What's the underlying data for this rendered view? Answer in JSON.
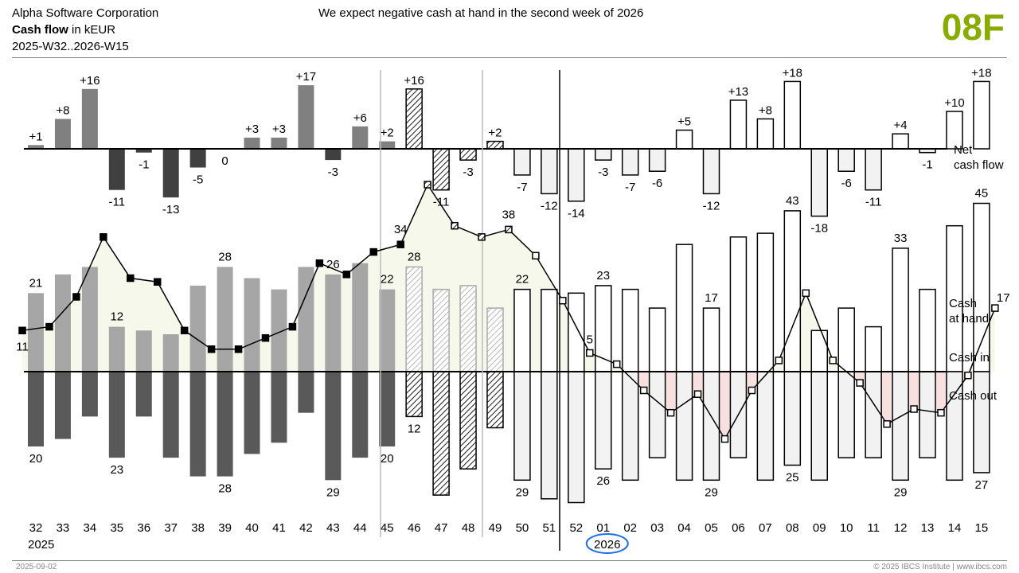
{
  "header": {
    "company": "Alpha Software Corporation",
    "title_bold": "Cash flow",
    "title_rest": " in kEUR",
    "period": "2025-W32..2026-W15",
    "message": "We expect negative cash at hand in the second week of 2026",
    "page_id": "08F"
  },
  "footer": {
    "date": "2025-09-02",
    "copyright": "© 2025 IBCS Institute | www.ibcs.com"
  },
  "colors": {
    "page_id": "#8aab00",
    "actual_net_pos": "#808080",
    "actual_net_neg": "#404040",
    "actual_in": "#a6a6a6",
    "actual_out": "#595959",
    "plan_fill": "#f2f2f2",
    "positive_area": "#f7f8ec",
    "negative_area": "#f8e0e0",
    "year_highlight": "#1a6fe8"
  },
  "chart_data": {
    "type": "bar",
    "title": "Cash flow",
    "unit": "kEUR",
    "series_labels": {
      "net": "Net\ncash flow",
      "cash_at_hand": "Cash\nat hand",
      "cash_in": "Cash in",
      "cash_out": "Cash out"
    },
    "weeks": [
      "32",
      "33",
      "34",
      "35",
      "36",
      "37",
      "38",
      "39",
      "40",
      "41",
      "42",
      "43",
      "44",
      "45",
      "46",
      "47",
      "48",
      "49",
      "50",
      "51",
      "52",
      "01",
      "02",
      "03",
      "04",
      "05",
      "06",
      "07",
      "08",
      "09",
      "10",
      "11",
      "12",
      "13",
      "14",
      "15"
    ],
    "scenario": [
      "AC",
      "AC",
      "AC",
      "AC",
      "AC",
      "AC",
      "AC",
      "AC",
      "AC",
      "AC",
      "AC",
      "AC",
      "AC",
      "AC",
      "FC",
      "FC",
      "FC",
      "FC",
      "PL",
      "PL",
      "PL",
      "PL",
      "PL",
      "PL",
      "PL",
      "PL",
      "PL",
      "PL",
      "PL",
      "PL",
      "PL",
      "PL",
      "PL",
      "PL",
      "PL",
      "PL"
    ],
    "year_labels": [
      {
        "week_index": 0,
        "text": "2025"
      },
      {
        "week_index": 21,
        "text": "2026",
        "highlighted": true
      }
    ],
    "cash_in": [
      21,
      26,
      28,
      12,
      11,
      10,
      23,
      28,
      25,
      22,
      28,
      26,
      29,
      22,
      28,
      22,
      23,
      17,
      22,
      22,
      21,
      23,
      22,
      17,
      34,
      17,
      36,
      37,
      43,
      11,
      17,
      12,
      33,
      22,
      39,
      45
    ],
    "cash_out": [
      20,
      18,
      12,
      23,
      12,
      23,
      28,
      28,
      22,
      19,
      11,
      29,
      23,
      20,
      12,
      33,
      26,
      15,
      29,
      34,
      35,
      26,
      29,
      23,
      29,
      29,
      23,
      29,
      25,
      29,
      23,
      23,
      29,
      23,
      29,
      27
    ],
    "net": [
      1,
      8,
      16,
      -11,
      -1,
      -13,
      -5,
      0,
      3,
      3,
      17,
      -3,
      6,
      2,
      16,
      -11,
      -3,
      2,
      -7,
      -12,
      -14,
      -3,
      -7,
      -6,
      5,
      -12,
      13,
      8,
      18,
      -18,
      -6,
      -11,
      4,
      -1,
      10,
      18
    ],
    "cash_at_hand_start": 11,
    "cash_at_hand": [
      12,
      20,
      36,
      25,
      24,
      11,
      6,
      6,
      9,
      12,
      29,
      26,
      32,
      34,
      50,
      39,
      36,
      38,
      31,
      19,
      5,
      2,
      -5,
      -11,
      -6,
      -18,
      -5,
      3,
      21,
      3,
      -3,
      -14,
      -10,
      -11,
      -1,
      17
    ],
    "labeled_in_weeks": [
      "32",
      "35",
      "39",
      "43",
      "45",
      "46",
      "50",
      "01",
      "05",
      "08",
      "12",
      "15"
    ],
    "labeled_out_weeks": [
      "32",
      "35",
      "39",
      "43",
      "45",
      "46",
      "50",
      "01",
      "05",
      "08",
      "12",
      "15"
    ],
    "cash_at_hand_labels": [
      {
        "point": "start",
        "text": "11"
      },
      {
        "point": "45",
        "text": "34"
      },
      {
        "point": "49",
        "text": "38"
      },
      {
        "point": "52",
        "text": "5"
      },
      {
        "point": "15",
        "text": "17"
      }
    ]
  }
}
